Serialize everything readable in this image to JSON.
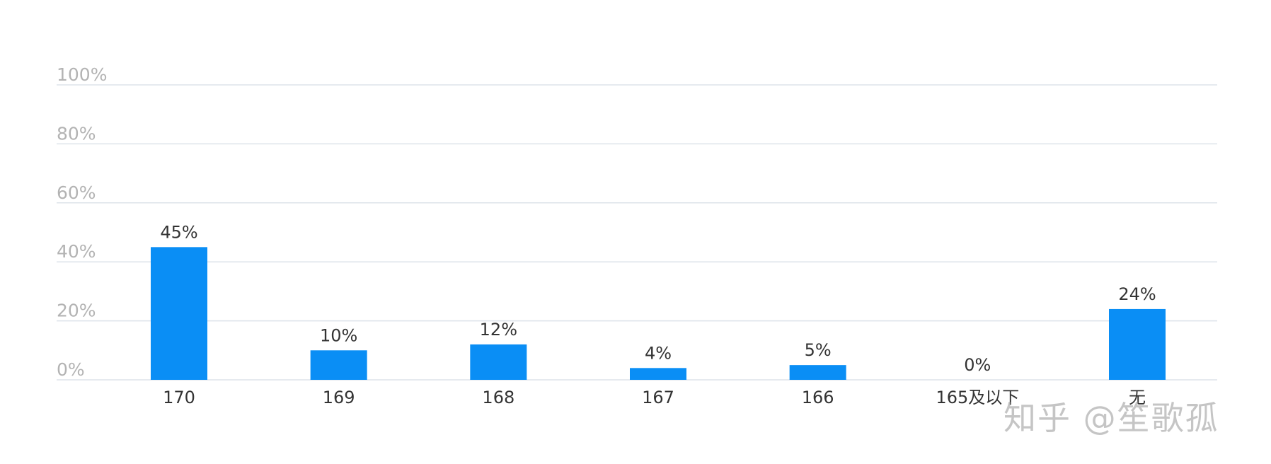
{
  "chart_data": {
    "type": "bar",
    "categories": [
      "170",
      "169",
      "168",
      "167",
      "166",
      "165及以下",
      "无"
    ],
    "values": [
      45,
      10,
      12,
      4,
      5,
      0,
      24
    ],
    "value_labels": [
      "45%",
      "10%",
      "12%",
      "4%",
      "5%",
      "0%",
      "24%"
    ],
    "ylim": [
      0,
      100
    ],
    "yticks": [
      {
        "value": 0,
        "label": "0%"
      },
      {
        "value": 20,
        "label": "20%"
      },
      {
        "value": 40,
        "label": "40%"
      },
      {
        "value": 60,
        "label": "60%"
      },
      {
        "value": 80,
        "label": "80%"
      },
      {
        "value": 100,
        "label": "100%"
      }
    ],
    "grid": true,
    "legend": "none",
    "bar_color": "#0a8ef5"
  },
  "watermark": {
    "text": "知乎 @笙歌孤"
  }
}
